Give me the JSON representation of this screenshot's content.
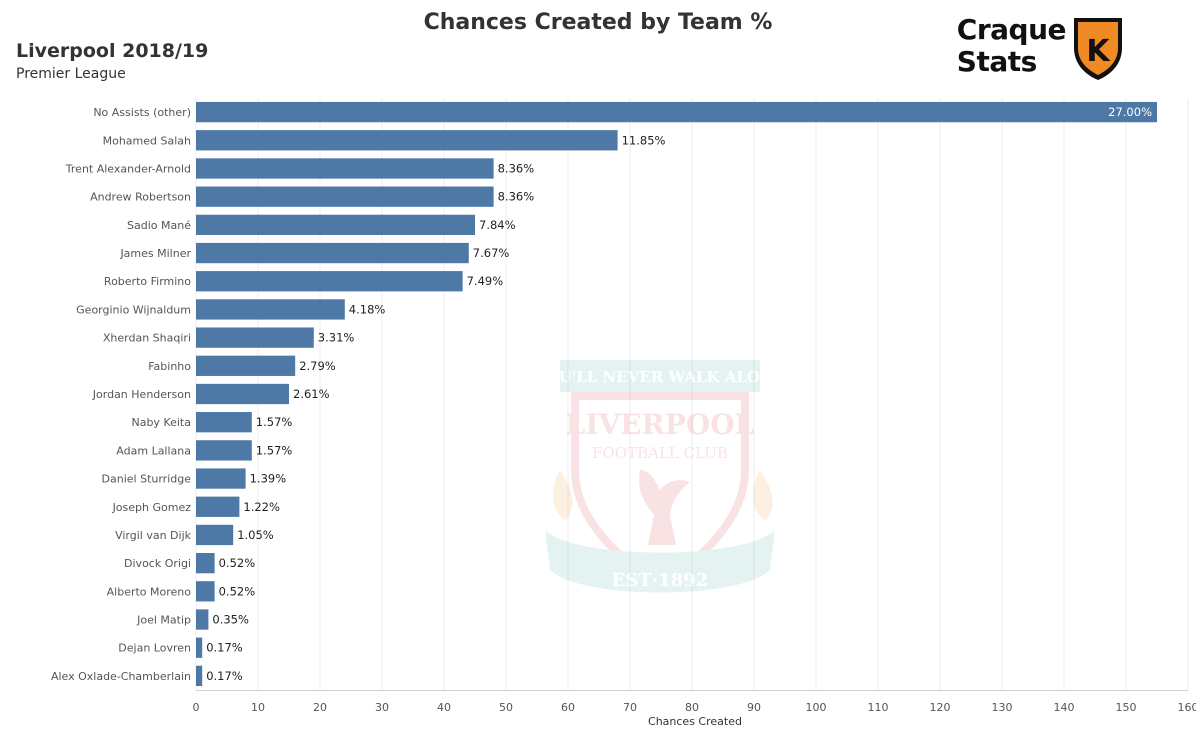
{
  "header": {
    "title": "Chances Created by Team %",
    "team_season": "Liverpool 2018/19",
    "competition": "Premier League"
  },
  "brand": {
    "line1": "Craque",
    "line2": "Stats",
    "shield_color": "#F08A24",
    "shield_letter": "K"
  },
  "watermark": {
    "motto": "YOU'LL NEVER WALK ALONE",
    "club_line1": "LIVERPOOL",
    "club_line2": "FOOTBALL CLUB",
    "est": "EST·1892"
  },
  "chart_data": {
    "type": "bar",
    "orientation": "horizontal",
    "xlabel": "Chances Created",
    "xlim": [
      0,
      160
    ],
    "xticks": [
      0,
      10,
      20,
      30,
      40,
      50,
      60,
      70,
      80,
      90,
      100,
      110,
      120,
      130,
      140,
      150,
      160
    ],
    "grid": true,
    "bar_color": "#4E79A7",
    "categories": [
      "No Assists (other)",
      "Mohamed Salah",
      "Trent Alexander-Arnold",
      "Andrew Robertson",
      "Sadio Mané",
      "James Milner",
      "Roberto Firmino",
      "Georginio Wijnaldum",
      "Xherdan Shaqiri",
      "Fabinho",
      "Jordan Henderson",
      "Naby Keita",
      "Adam Lallana",
      "Daniel Sturridge",
      "Joseph Gomez",
      "Virgil van Dijk",
      "Divock Origi",
      "Alberto Moreno",
      "Joel Matip",
      "Dejan Lovren",
      "Alex Oxlade-Chamberlain"
    ],
    "values": [
      155,
      68,
      48,
      48,
      45,
      44,
      43,
      24,
      19,
      16,
      15,
      9,
      9,
      8,
      7,
      6,
      3,
      3,
      2,
      1,
      1
    ],
    "labels": [
      "27.00%",
      "11.85%",
      "8.36%",
      "8.36%",
      "7.84%",
      "7.67%",
      "7.49%",
      "4.18%",
      "3.31%",
      "2.79%",
      "2.61%",
      "1.57%",
      "1.57%",
      "1.39%",
      "1.22%",
      "1.05%",
      "0.52%",
      "0.52%",
      "0.35%",
      "0.17%",
      "0.17%"
    ]
  }
}
